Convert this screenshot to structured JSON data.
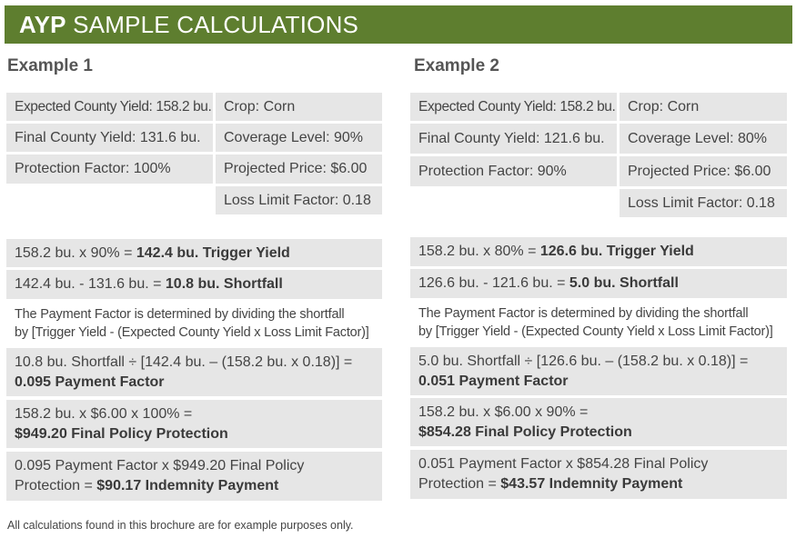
{
  "banner": {
    "bold": "AYP",
    "rest": "SAMPLE CALCULATIONS"
  },
  "example1": {
    "title": "Example 1",
    "expected_yield": "Expected County Yield: 158.2 bu.",
    "crop": "Crop: Corn",
    "final_yield": "Final County Yield: 131.6 bu.",
    "coverage": "Coverage Level: 90%",
    "protection": "Protection Factor: 100%",
    "price": "Projected Price: $6.00",
    "loss_limit": "Loss Limit Factor: 0.18",
    "trigger_prefix": "158.2 bu. x 90% = ",
    "trigger_result": "142.4 bu. Trigger Yield",
    "shortfall_prefix": "142.4 bu. - 131.6 bu. = ",
    "shortfall_result": "10.8 bu. Shortfall",
    "note_line1": "The Payment Factor is determined by dividing the shortfall",
    "note_line2": "by [Trigger Yield - (Expected County Yield x Loss Limit Factor)]",
    "payment_line1": "10.8 bu. Shortfall ÷ [142.4 bu. – (158.2 bu. x 0.18)] =",
    "payment_line2": "0.095 Payment Factor",
    "policy_line1": "158.2 bu. x $6.00 x 100% =",
    "policy_line2": "$949.20 Final Policy Protection",
    "indemnity_line1": "0.095 Payment Factor x $949.20 Final Policy",
    "indemnity_prefix": "Protection = ",
    "indemnity_result": "$90.17 Indemnity Payment"
  },
  "example2": {
    "title": "Example 2",
    "expected_yield": "Expected County Yield: 158.2 bu.",
    "crop": "Crop: Corn",
    "final_yield": "Final County Yield: 121.6 bu.",
    "coverage": "Coverage Level: 80%",
    "protection": "Protection Factor: 90%",
    "price": "Projected Price: $6.00",
    "loss_limit": "Loss Limit Factor: 0.18",
    "trigger_prefix": "158.2 bu. x 80% = ",
    "trigger_result": "126.6 bu. Trigger Yield",
    "shortfall_prefix": "126.6 bu. - 121.6 bu. = ",
    "shortfall_result": "5.0 bu. Shortfall",
    "note_line1": "The Payment Factor is determined by dividing the shortfall",
    "note_line2": "by [Trigger Yield - (Expected County Yield x Loss Limit Factor)]",
    "payment_line1": "5.0 bu. Shortfall ÷ [126.6 bu. – (158.2 bu. x 0.18)] =",
    "payment_line2": "0.051 Payment Factor",
    "policy_line1": "158.2 bu. x $6.00 x 90% =",
    "policy_line2": "$854.28 Final Policy Protection",
    "indemnity_line1": "0.051 Payment Factor x $854.28 Final Policy",
    "indemnity_prefix": "Protection = ",
    "indemnity_result": "$43.57 Indemnity Payment"
  },
  "footnote": "All calculations found in this brochure are for example purposes only.",
  "colors": {
    "banner": "#5e7e2f",
    "cell": "#e6e6e6"
  }
}
